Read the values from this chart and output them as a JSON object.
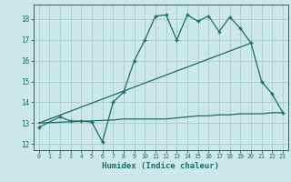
{
  "title": "",
  "xlabel": "Humidex (Indice chaleur)",
  "bg_color": "#cce8e8",
  "line_color": "#1a6b6b",
  "grid_color": "#aacaca",
  "xlim": [
    -0.5,
    23.5
  ],
  "ylim": [
    11.7,
    18.7
  ],
  "xticks": [
    0,
    1,
    2,
    3,
    4,
    5,
    6,
    7,
    8,
    9,
    10,
    11,
    12,
    13,
    14,
    15,
    16,
    17,
    18,
    19,
    20,
    21,
    22,
    23
  ],
  "yticks": [
    12,
    13,
    14,
    15,
    16,
    17,
    18
  ],
  "line1_x": [
    0,
    2,
    3,
    4,
    5,
    6,
    7,
    8,
    9,
    10,
    11,
    12,
    13,
    14,
    15,
    16,
    17,
    18,
    19,
    20,
    21,
    22,
    23
  ],
  "line1_y": [
    12.8,
    13.3,
    13.1,
    13.1,
    13.05,
    12.1,
    14.0,
    14.5,
    16.0,
    17.0,
    18.15,
    18.2,
    17.0,
    18.2,
    17.9,
    18.15,
    17.4,
    18.1,
    17.55,
    16.85,
    15.0,
    14.4,
    13.5
  ],
  "line2_x": [
    0,
    20
  ],
  "line2_y": [
    13.0,
    16.85
  ],
  "line3_x": [
    0,
    7,
    8,
    9,
    10,
    11,
    12,
    13,
    14,
    15,
    16,
    17,
    18,
    19,
    20,
    21,
    22,
    23
  ],
  "line3_y": [
    13.0,
    13.15,
    13.2,
    13.2,
    13.2,
    13.2,
    13.2,
    13.25,
    13.3,
    13.35,
    13.35,
    13.4,
    13.4,
    13.45,
    13.45,
    13.45,
    13.5,
    13.5
  ]
}
